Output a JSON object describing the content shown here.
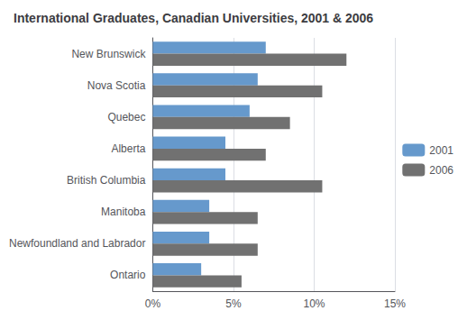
{
  "chart_data": {
    "type": "bar",
    "orientation": "horizontal",
    "title": "International Graduates, Canadian Universities, 2001 & 2006",
    "categories": [
      "New Brunswick",
      "Nova Scotia",
      "Quebec",
      "Alberta",
      "British Columbia",
      "Manitoba",
      "Newfoundland and Labrador",
      "Ontario"
    ],
    "series": [
      {
        "name": "2001",
        "color": "#6699CC",
        "values": [
          7.0,
          6.5,
          6.0,
          4.5,
          4.5,
          3.5,
          3.5,
          3.0
        ]
      },
      {
        "name": "2006",
        "color": "#717171",
        "values": [
          12.0,
          10.5,
          8.5,
          7.0,
          10.5,
          6.5,
          6.5,
          5.5
        ]
      }
    ],
    "xlim": [
      0,
      15
    ],
    "xticks": [
      {
        "value": 0,
        "label": "0%"
      },
      {
        "value": 5,
        "label": "5%"
      },
      {
        "value": 10,
        "label": "10%"
      },
      {
        "value": 15,
        "label": "15%"
      }
    ],
    "grid": true,
    "legend": "right"
  }
}
